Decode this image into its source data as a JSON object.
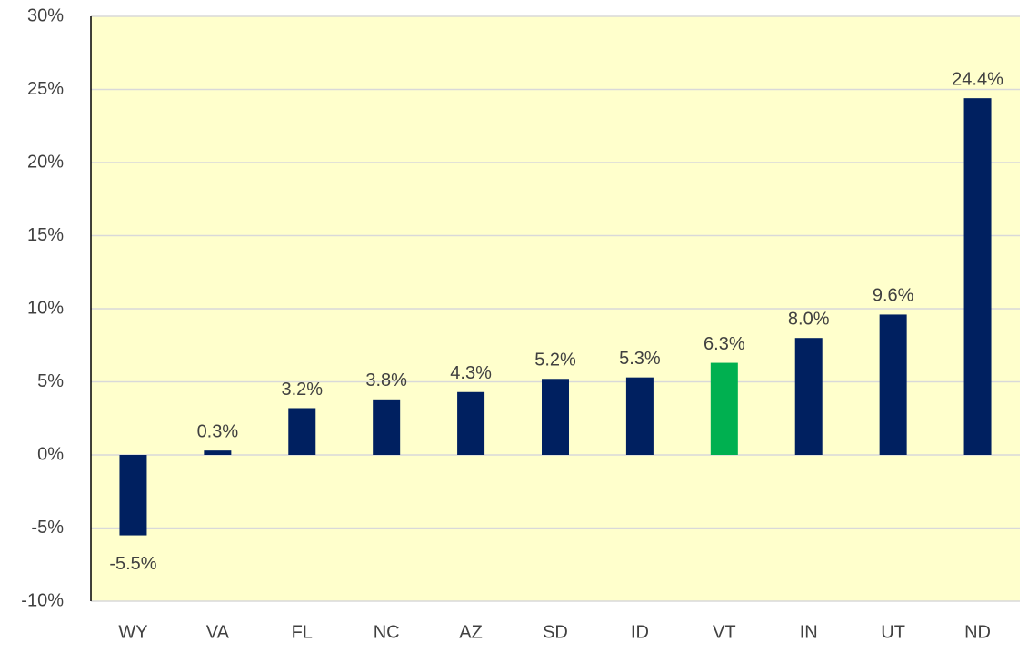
{
  "chart_data": {
    "type": "bar",
    "categories": [
      "WY",
      "VA",
      "FL",
      "NC",
      "AZ",
      "SD",
      "ID",
      "VT",
      "IN",
      "UT",
      "ND"
    ],
    "values": [
      -5.5,
      0.3,
      3.2,
      3.8,
      4.3,
      5.2,
      5.3,
      6.3,
      8.0,
      9.6,
      24.4
    ],
    "value_labels": [
      "-5.5%",
      "0.3%",
      "3.2%",
      "3.8%",
      "4.3%",
      "5.2%",
      "5.3%",
      "6.3%",
      "8.0%",
      "9.6%",
      "24.4%"
    ],
    "colors": [
      "#002060",
      "#002060",
      "#002060",
      "#002060",
      "#002060",
      "#002060",
      "#002060",
      "#00b050",
      "#002060",
      "#002060",
      "#002060"
    ],
    "ylim": [
      -10,
      30
    ],
    "yticks": [
      {
        "value": -10,
        "label": "-10%"
      },
      {
        "value": -5,
        "label": "-5%"
      },
      {
        "value": 0,
        "label": "0%"
      },
      {
        "value": 5,
        "label": "5%"
      },
      {
        "value": 10,
        "label": "10%"
      },
      {
        "value": 15,
        "label": "15%"
      },
      {
        "value": 20,
        "label": "20%"
      },
      {
        "value": 25,
        "label": "25%"
      },
      {
        "value": 30,
        "label": "30%"
      }
    ],
    "grid": true
  }
}
